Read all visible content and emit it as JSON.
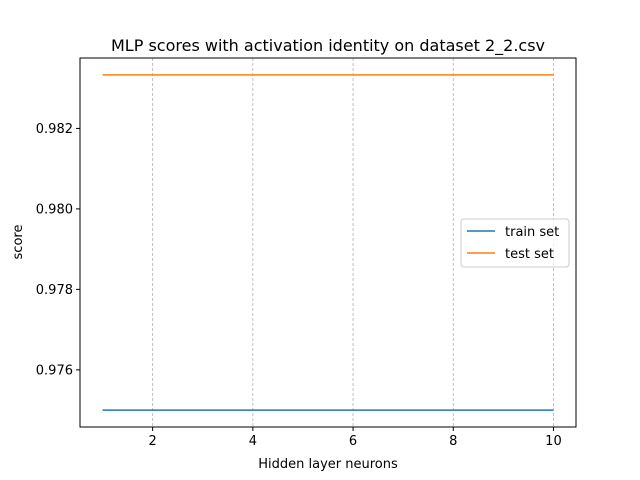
{
  "chart_data": {
    "type": "line",
    "title": "MLP scores with activation identity on dataset 2_2.csv",
    "xlabel": "Hidden layer neurons",
    "ylabel": "score",
    "x": [
      1,
      2,
      3,
      4,
      5,
      6,
      7,
      8,
      9,
      10
    ],
    "xlim": [
      0.55,
      10.45
    ],
    "ylim": [
      0.97458,
      0.98375
    ],
    "xticks": [
      2,
      4,
      6,
      8,
      10
    ],
    "xtick_labels": [
      "2",
      "4",
      "6",
      "8",
      "10"
    ],
    "yticks": [
      0.976,
      0.978,
      0.98,
      0.982
    ],
    "ytick_labels": [
      "0.976",
      "0.978",
      "0.980",
      "0.982"
    ],
    "grid": "x-dashed",
    "legend_position": "center-right",
    "series": [
      {
        "name": "train set",
        "color": "#1f77b4",
        "values": [
          0.975,
          0.975,
          0.975,
          0.975,
          0.975,
          0.975,
          0.975,
          0.975,
          0.975,
          0.975
        ]
      },
      {
        "name": "test set",
        "color": "#ff7f0e",
        "values": [
          0.98333,
          0.98333,
          0.98333,
          0.98333,
          0.98333,
          0.98333,
          0.98333,
          0.98333,
          0.98333,
          0.98333
        ]
      }
    ]
  }
}
